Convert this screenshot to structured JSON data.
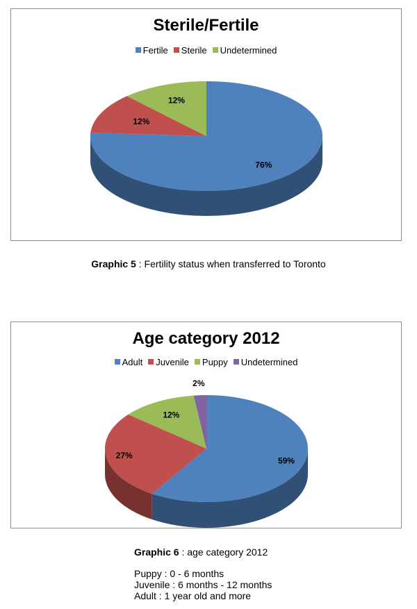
{
  "chart_data": [
    {
      "type": "pie",
      "title": "Sterile/Fertile",
      "legend_position": "top",
      "three_d": true,
      "categories": [
        "Fertile",
        "Sterile",
        "Undetermined"
      ],
      "values": [
        76,
        12,
        12
      ],
      "labels": [
        "76%",
        "12%",
        "12%"
      ],
      "colors": [
        "#4f81bd",
        "#c0504d",
        "#9bbb59"
      ]
    },
    {
      "type": "pie",
      "title": "Age category 2012",
      "legend_position": "top",
      "three_d": true,
      "categories": [
        "Adult",
        "Juvenile",
        "Puppy",
        "Undetermined"
      ],
      "values": [
        59,
        27,
        12,
        2
      ],
      "labels": [
        "59%",
        "27%",
        "12%",
        "2%"
      ],
      "colors": [
        "#4f81bd",
        "#c0504d",
        "#9bbb59",
        "#8064a2"
      ]
    }
  ],
  "captions": [
    {
      "bold": "Graphic 5",
      "text": " : Fertility status when transferred to Toronto"
    },
    {
      "bold": "Graphic 6",
      "text": " : age category 2012"
    }
  ],
  "notes": [
    "Puppy : 0 - 6 months",
    "Juvenile : 6 months - 12 months",
    "Adult : 1 year old and more"
  ]
}
